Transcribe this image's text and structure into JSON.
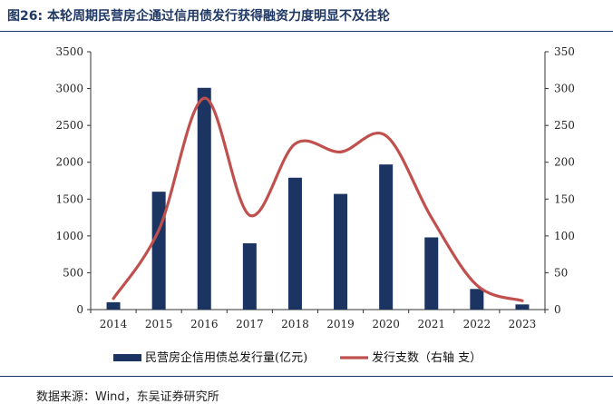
{
  "figure": {
    "title": "图26:  本轮周期民营房企通过信用债发行获得融资力度明显不及往轮",
    "source": "数据来源：Wind，东吴证券研究所"
  },
  "colors": {
    "bar": "#1c3461",
    "line": "#c0504d",
    "title": "#1f3864",
    "axis": "#333333"
  },
  "chart_data": {
    "type": "bar",
    "categories": [
      "2014",
      "2015",
      "2016",
      "2017",
      "2018",
      "2019",
      "2020",
      "2021",
      "2022",
      "2023"
    ],
    "series": [
      {
        "name": "民营房企信用债总发行量(亿元)",
        "type": "bar",
        "axis": "left",
        "values": [
          100,
          1600,
          3010,
          900,
          1790,
          1570,
          1970,
          980,
          280,
          70
        ]
      },
      {
        "name": "发行支数（右轴  支）",
        "type": "line",
        "axis": "right",
        "smooth": true,
        "values": [
          15,
          108,
          287,
          128,
          225,
          214,
          236,
          125,
          33,
          12
        ]
      }
    ],
    "ylim_left": [
      0,
      3500
    ],
    "ylim_right": [
      0,
      350
    ],
    "yticks_left": [
      0,
      500,
      1000,
      1500,
      2000,
      2500,
      3000,
      3500
    ],
    "yticks_right": [
      0,
      50,
      100,
      150,
      200,
      250,
      300,
      350
    ],
    "legend": "bottom",
    "grid": false
  }
}
